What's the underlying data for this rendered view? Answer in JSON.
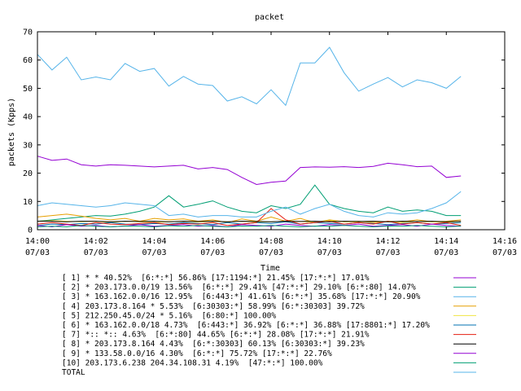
{
  "chart_data": {
    "type": "line",
    "title": "packet",
    "xlabel": "Time",
    "ylabel": "packets (Kpps)",
    "ylim": [
      0,
      70
    ],
    "yticks": [
      0,
      10,
      20,
      30,
      40,
      50,
      60,
      70
    ],
    "xticks": [
      {
        "time": "14:00",
        "date": "07/03",
        "min": 0
      },
      {
        "time": "14:02",
        "date": "07/03",
        "min": 2
      },
      {
        "time": "14:04",
        "date": "07/03",
        "min": 4
      },
      {
        "time": "14:06",
        "date": "07/03",
        "min": 6
      },
      {
        "time": "14:08",
        "date": "07/03",
        "min": 8
      },
      {
        "time": "14:10",
        "date": "07/03",
        "min": 10
      },
      {
        "time": "14:12",
        "date": "07/03",
        "min": 12
      },
      {
        "time": "14:14",
        "date": "07/03",
        "min": 14
      },
      {
        "time": "14:16",
        "date": "07/03",
        "min": 16
      }
    ],
    "xlim_minutes": [
      0,
      16
    ],
    "x_minutes": [
      0,
      0.5,
      1,
      1.5,
      2,
      2.5,
      3,
      3.5,
      4,
      4.5,
      5,
      5.5,
      6,
      6.5,
      7,
      7.5,
      8,
      8.5,
      9,
      9.5,
      10,
      10.5,
      11,
      11.5,
      12,
      12.5,
      13,
      13.5,
      14,
      14.5
    ],
    "grid": false,
    "legend_position": "bottom",
    "series": [
      {
        "name": "[ 1] * * 40.52%  [6:*:*] 56.86% [17:1194:*] 21.45% [17:*:*] 17.01%",
        "color": "#9400d3",
        "values": [
          26,
          24.5,
          25,
          23,
          22.5,
          23,
          22.8,
          22.5,
          22.2,
          22.5,
          22.8,
          21.5,
          22,
          21.3,
          18.5,
          16,
          16.8,
          17.2,
          22,
          22.2,
          22.1,
          22.3,
          22,
          22.4,
          23.5,
          23,
          22.3,
          22.5,
          18.5,
          19
        ]
      },
      {
        "name": "[ 2] * 203.173.0.0/19 13.56%  [6:*:*] 29.41% [47:*:*] 29.10% [6:*:80] 14.07%",
        "color": "#009e73",
        "values": [
          3,
          3.5,
          4,
          4.5,
          5,
          4.8,
          5.5,
          6.5,
          8,
          12,
          8,
          9,
          10.2,
          8,
          6.5,
          6,
          8.5,
          7.5,
          9,
          15.8,
          9,
          7.5,
          6.5,
          6,
          8,
          6.5,
          7,
          6.5,
          5,
          5
        ]
      },
      {
        "name": "[ 3] * 163.162.0.0/16 12.95%  [6:443:*] 41.61% [6:*:*] 35.68% [17:*:*] 20.90%",
        "color": "#56b4e9",
        "values": [
          62,
          56.5,
          61,
          53,
          54,
          53,
          58.8,
          56,
          57,
          50.8,
          54.2,
          51.5,
          51,
          45.5,
          47,
          44.5,
          49.5,
          44,
          59,
          59,
          64.5,
          55.5,
          49,
          51.5,
          53.8,
          50.5,
          53,
          52,
          50,
          54.2
        ]
      },
      {
        "name": "[ 4] 203.173.8.164 * 5.53%  [6:30303:*] 58.99% [6:*:30303] 39.72%",
        "color": "#e69f00",
        "values": [
          4.5,
          5,
          5.5,
          4.8,
          4,
          3.5,
          4,
          3,
          4,
          3.5,
          3.8,
          3,
          3.5,
          2.5,
          3.8,
          3,
          4.5,
          3,
          4,
          2.5,
          3.5,
          2.8,
          3,
          2.5,
          3,
          2.8,
          3.5,
          2.8,
          3,
          3.5
        ]
      },
      {
        "name": "[ 5] 212.250.45.0/24 * 5.16%  [6:80:*] 100.00%",
        "color": "#f0e442",
        "values": [
          3,
          3.2,
          3,
          2.8,
          3,
          2.5,
          3,
          2.8,
          2.5,
          2.8,
          3,
          2.7,
          2.9,
          2.8,
          3,
          2.7,
          2.8,
          3,
          2.9,
          2.6,
          3.2,
          2.8,
          2.7,
          3,
          2.8,
          2.6,
          2.9,
          2.8,
          2.6,
          2.9
        ]
      },
      {
        "name": "[ 6] * 163.162.0.0/18 4.73%  [6:443:*] 36.92% [6:*:*] 36.88% [17:8801:*] 17.20%",
        "color": "#0072b2",
        "values": [
          1.5,
          2,
          1.8,
          2.2,
          2,
          2.5,
          2,
          1.8,
          2.2,
          2,
          2.5,
          2.2,
          1.8,
          2.5,
          2,
          2.5,
          2.2,
          2.8,
          2,
          2.5,
          2.2,
          2,
          2.5,
          2.2,
          1.8,
          2.2,
          2.5,
          2,
          2.2,
          2.5
        ]
      },
      {
        "name": "[ 7] *:: *:: 4.63%  [6:*:80] 44.65% [6:*:*] 28.08% [17:*:*] 21.91%",
        "color": "#e51e10",
        "values": [
          2,
          2.5,
          2,
          1.5,
          2.5,
          2,
          1.8,
          2.2,
          2.5,
          1.8,
          2.2,
          2,
          2.5,
          1.5,
          2,
          2.5,
          7.5,
          3.5,
          2,
          2.5,
          3,
          2,
          2.5,
          2,
          3,
          2,
          2.5,
          2,
          2.5,
          1.5
        ]
      },
      {
        "name": "[ 8] * 203.173.8.164 4.43%  [6:*:30303] 60.13% [6:30303:*] 39.23%",
        "color": "#000000",
        "values": [
          3,
          3,
          2.8,
          3,
          3,
          2.8,
          3,
          2.9,
          3,
          2.8,
          3,
          2.9,
          3,
          2.8,
          3,
          2.9,
          2.8,
          3,
          2.9,
          3,
          2.8,
          3,
          2.9,
          3,
          2.8,
          3,
          2.9,
          3,
          2.8,
          3
        ]
      },
      {
        "name": "[ 9] * 133.58.0.0/16 4.30%  [6:*:*] 75.72% [17:*:*] 22.76%",
        "color": "#9400d3",
        "values": [
          1.5,
          1,
          1.8,
          1.2,
          1.5,
          1,
          1.3,
          1.8,
          1.2,
          1.5,
          1.8,
          1.2,
          1.5,
          1,
          1.8,
          1.5,
          1.2,
          2,
          1.5,
          1.2,
          1.8,
          1.5,
          2,
          1.2,
          1.5,
          1.8,
          1.2,
          2,
          1.5,
          1.2
        ]
      },
      {
        "name": "[10] 203.173.6.238 204.34.108.31 4.19%  [47:*:*] 100.00%",
        "color": "#009e73",
        "values": [
          1,
          1.2,
          1,
          1.5,
          1.2,
          1,
          1.3,
          1.2,
          1,
          1.4,
          1.2,
          1.5,
          1.2,
          1,
          1.3,
          1.2,
          1.5,
          1.2,
          1,
          1.3,
          1.2,
          1.5,
          1.2,
          1,
          1.3,
          1.2,
          1.5,
          1.2,
          1,
          1.3
        ]
      },
      {
        "name": "TOTAL",
        "color": "#56b4e9",
        "values": [
          8.5,
          9.5,
          9,
          8.5,
          8,
          8.5,
          9.5,
          9,
          8.5,
          5,
          5.5,
          4.5,
          5,
          5,
          4.5,
          4.5,
          6.5,
          8,
          5.5,
          7.5,
          9,
          6.5,
          5,
          4.5,
          6,
          5.5,
          6,
          7.5,
          9.5,
          13.5
        ]
      }
    ]
  }
}
